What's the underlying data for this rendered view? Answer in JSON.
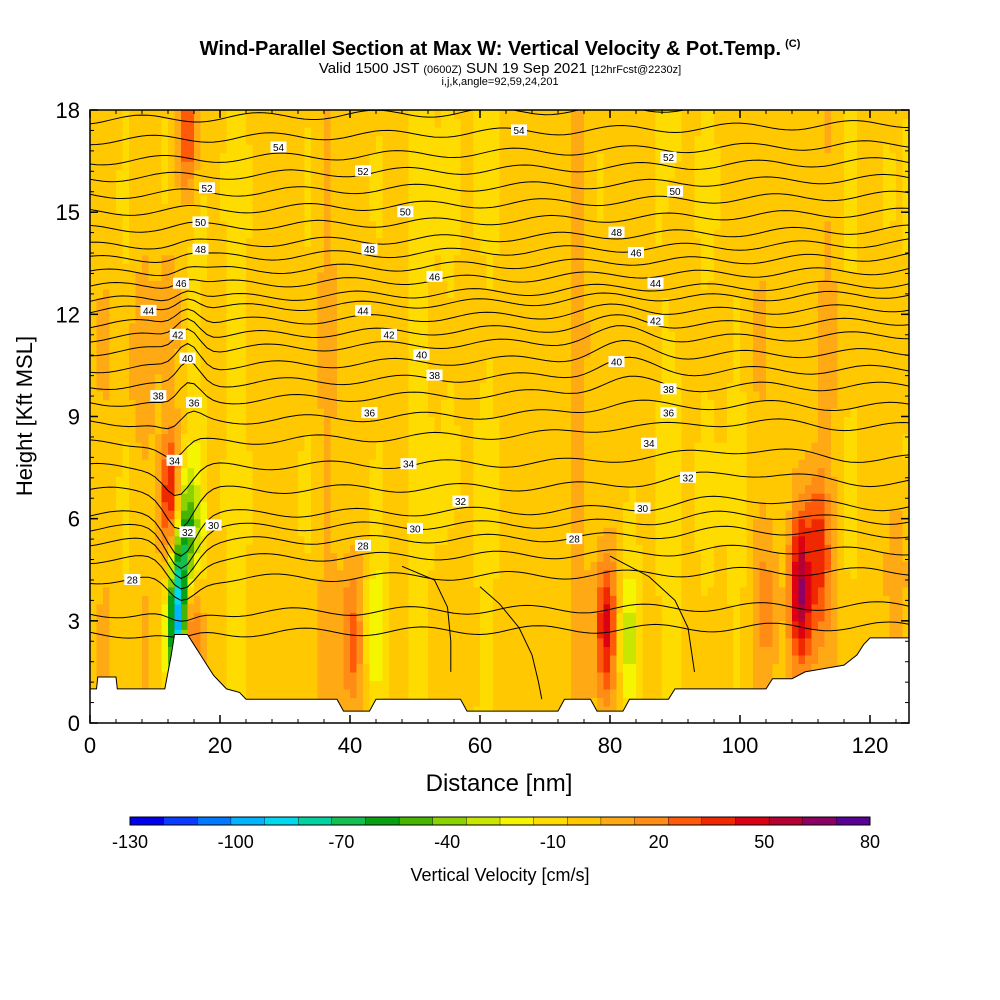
{
  "header": {
    "title": "Wind-Parallel Section at Max W: Vertical Velocity & Pot.Temp.",
    "title_mark": "(C)",
    "valid_prefix": "Valid 1500 JST",
    "valid_utc": "(0600Z)",
    "valid_date": "SUN 19 Sep 2021",
    "forecast": "[12hrFcst@2230z]",
    "indices": "i,j,k,angle=92,59,24,201"
  },
  "chart_data": {
    "type": "heatmap",
    "xlabel": "Distance [nm]",
    "ylabel": "Height [Kft MSL]",
    "xlim": [
      0,
      126
    ],
    "ylim": [
      0,
      18
    ],
    "xticks": [
      0,
      20,
      40,
      60,
      80,
      100,
      120
    ],
    "yticks": [
      0,
      3,
      6,
      9,
      12,
      15,
      18
    ],
    "colorbar": {
      "label": "Vertical Velocity [cm/s]",
      "tick_labels": [
        "-130",
        "-100",
        "-70",
        "-40",
        "-10",
        "20",
        "50",
        "80"
      ],
      "levels": [
        -130,
        -120,
        -110,
        -100,
        -90,
        -80,
        -70,
        -60,
        -50,
        -40,
        -30,
        -20,
        -10,
        0,
        10,
        20,
        30,
        40,
        50,
        60,
        70,
        80
      ],
      "colors": [
        "#0000ee",
        "#0a3cff",
        "#0078ff",
        "#00b4ff",
        "#00d8f0",
        "#00d2a0",
        "#14be50",
        "#0aa014",
        "#46b400",
        "#8cd200",
        "#c8e600",
        "#f5f500",
        "#ffdc00",
        "#ffc800",
        "#ffaa14",
        "#ff8c14",
        "#ff5a0a",
        "#f02800",
        "#dc0014",
        "#b40032",
        "#8c0064",
        "#5a0096"
      ]
    },
    "velocity_anomalies": [
      {
        "x": 12.5,
        "y": 6.5,
        "v": 60
      },
      {
        "x": 15.2,
        "y": 5.2,
        "v": -60
      },
      {
        "x": 14.0,
        "y": 3.0,
        "v": -120
      },
      {
        "x": 16.0,
        "y": 2.6,
        "v": 30
      },
      {
        "x": 15.0,
        "y": 17.5,
        "v": 40
      },
      {
        "x": 12.0,
        "y": 12.0,
        "v": 20
      },
      {
        "x": 8.0,
        "y": 10.5,
        "v": 20
      },
      {
        "x": 40.5,
        "y": 2.5,
        "v": 35
      },
      {
        "x": 44.0,
        "y": 2.8,
        "v": -20
      },
      {
        "x": 56.0,
        "y": 3.0,
        "v": 10
      },
      {
        "x": 79.5,
        "y": 2.8,
        "v": 55
      },
      {
        "x": 83.0,
        "y": 2.5,
        "v": -25
      },
      {
        "x": 109.5,
        "y": 4.0,
        "v": 75
      },
      {
        "x": 112.0,
        "y": 5.0,
        "v": 50
      },
      {
        "x": 104.0,
        "y": 3.5,
        "v": 25
      },
      {
        "x": 124.0,
        "y": 4.5,
        "v": 20
      },
      {
        "x": 90.0,
        "y": 14.0,
        "v": 10
      },
      {
        "x": 100.0,
        "y": 15.5,
        "v": 10
      },
      {
        "x": 30.0,
        "y": 15.0,
        "v": 5
      },
      {
        "x": 60.0,
        "y": 12.0,
        "v": 5
      }
    ],
    "theta_contours": [
      {
        "v": 26,
        "y0": 2.6
      },
      {
        "v": 27,
        "y0": 3.2
      },
      {
        "v": 28,
        "y0": 4.2
      },
      {
        "v": 29,
        "y0": 4.8
      },
      {
        "v": 30,
        "y0": 5.3
      },
      {
        "v": 31,
        "y0": 5.7
      },
      {
        "v": 32,
        "y0": 6.1
      },
      {
        "v": 33,
        "y0": 6.8
      },
      {
        "v": 34,
        "y0": 7.5
      },
      {
        "v": 35,
        "y0": 8.2
      },
      {
        "v": 36,
        "y0": 8.8
      },
      {
        "v": 37,
        "y0": 9.4
      },
      {
        "v": 38,
        "y0": 9.9
      },
      {
        "v": 39,
        "y0": 10.4
      },
      {
        "v": 40,
        "y0": 10.9
      },
      {
        "v": 41,
        "y0": 11.3
      },
      {
        "v": 42,
        "y0": 11.7
      },
      {
        "v": 43,
        "y0": 12.1
      },
      {
        "v": 44,
        "y0": 12.4
      },
      {
        "v": 45,
        "y0": 12.8
      },
      {
        "v": 46,
        "y0": 13.2
      },
      {
        "v": 47,
        "y0": 13.6
      },
      {
        "v": 48,
        "y0": 14.0
      },
      {
        "v": 49,
        "y0": 14.5
      },
      {
        "v": 50,
        "y0": 15.0
      },
      {
        "v": 51,
        "y0": 15.5
      },
      {
        "v": 52,
        "y0": 16.0
      },
      {
        "v": 53,
        "y0": 16.5
      },
      {
        "v": 54,
        "y0": 17.1
      },
      {
        "v": 55,
        "y0": 17.7
      }
    ],
    "contour_labels": [
      {
        "text": "54",
        "x": 29,
        "y": 16.9
      },
      {
        "text": "54",
        "x": 66,
        "y": 17.4
      },
      {
        "text": "52",
        "x": 18,
        "y": 15.7
      },
      {
        "text": "52",
        "x": 42,
        "y": 16.2
      },
      {
        "text": "52",
        "x": 89,
        "y": 16.6
      },
      {
        "text": "50",
        "x": 17,
        "y": 14.7
      },
      {
        "text": "50",
        "x": 48.5,
        "y": 15.0
      },
      {
        "text": "50",
        "x": 90,
        "y": 15.6
      },
      {
        "text": "48",
        "x": 17,
        "y": 13.9
      },
      {
        "text": "48",
        "x": 43,
        "y": 13.9
      },
      {
        "text": "48",
        "x": 81,
        "y": 14.4
      },
      {
        "text": "46",
        "x": 14,
        "y": 12.9
      },
      {
        "text": "46",
        "x": 53,
        "y": 13.1
      },
      {
        "text": "46",
        "x": 84,
        "y": 13.8
      },
      {
        "text": "44",
        "x": 9,
        "y": 12.1
      },
      {
        "text": "44",
        "x": 42,
        "y": 12.1
      },
      {
        "text": "44",
        "x": 87,
        "y": 12.9
      },
      {
        "text": "42",
        "x": 13.5,
        "y": 11.4
      },
      {
        "text": "42",
        "x": 46,
        "y": 11.4
      },
      {
        "text": "42",
        "x": 87,
        "y": 11.8
      },
      {
        "text": "40",
        "x": 15,
        "y": 10.7
      },
      {
        "text": "40",
        "x": 51,
        "y": 10.8
      },
      {
        "text": "40",
        "x": 81,
        "y": 10.6
      },
      {
        "text": "38",
        "x": 10.5,
        "y": 9.6
      },
      {
        "text": "38",
        "x": 53,
        "y": 10.2
      },
      {
        "text": "38",
        "x": 89,
        "y": 9.8
      },
      {
        "text": "36",
        "x": 16,
        "y": 9.4
      },
      {
        "text": "36",
        "x": 43,
        "y": 9.1
      },
      {
        "text": "36",
        "x": 89,
        "y": 9.1
      },
      {
        "text": "34",
        "x": 13,
        "y": 7.7
      },
      {
        "text": "34",
        "x": 49,
        "y": 7.6
      },
      {
        "text": "34",
        "x": 86,
        "y": 8.2
      },
      {
        "text": "32",
        "x": 15,
        "y": 5.6
      },
      {
        "text": "32",
        "x": 57,
        "y": 6.5
      },
      {
        "text": "32",
        "x": 92,
        "y": 7.2
      },
      {
        "text": "30",
        "x": 19,
        "y": 5.8
      },
      {
        "text": "30",
        "x": 50,
        "y": 5.7
      },
      {
        "text": "30",
        "x": 85,
        "y": 6.3
      },
      {
        "text": "28",
        "x": 6.5,
        "y": 4.2
      },
      {
        "text": "28",
        "x": 42,
        "y": 5.2
      },
      {
        "text": "28",
        "x": 74.5,
        "y": 5.4
      }
    ],
    "terrain": [
      [
        0,
        1.0
      ],
      [
        1,
        1.0
      ],
      [
        1.2,
        1.35
      ],
      [
        4,
        1.35
      ],
      [
        4.2,
        1.0
      ],
      [
        11.5,
        1.0
      ],
      [
        12.5,
        2.0
      ],
      [
        13,
        2.6
      ],
      [
        15,
        2.6
      ],
      [
        16,
        2.3
      ],
      [
        17,
        2.0
      ],
      [
        18,
        1.7
      ],
      [
        19,
        1.4
      ],
      [
        20,
        1.2
      ],
      [
        21,
        1.0
      ],
      [
        23,
        0.9
      ],
      [
        24,
        0.7
      ],
      [
        38,
        0.7
      ],
      [
        39,
        0.35
      ],
      [
        43,
        0.35
      ],
      [
        44,
        0.7
      ],
      [
        57,
        0.7
      ],
      [
        58,
        0.35
      ],
      [
        72,
        0.35
      ],
      [
        73,
        0.7
      ],
      [
        77,
        0.7
      ],
      [
        78,
        0.35
      ],
      [
        82,
        0.35
      ],
      [
        83,
        0.7
      ],
      [
        89,
        0.7
      ],
      [
        90,
        1.0
      ],
      [
        104,
        1.0
      ],
      [
        105,
        1.3
      ],
      [
        108,
        1.3
      ],
      [
        110,
        1.5
      ],
      [
        116,
        1.7
      ],
      [
        118,
        2.0
      ],
      [
        119,
        2.3
      ],
      [
        120,
        2.5
      ],
      [
        126,
        2.5
      ]
    ],
    "extra_contours": [
      {
        "pts": [
          [
            60,
            4.0
          ],
          [
            63,
            3.5
          ],
          [
            66,
            2.8
          ],
          [
            68,
            2.0
          ],
          [
            69,
            1.2
          ],
          [
            69.5,
            0.7
          ]
        ]
      },
      {
        "pts": [
          [
            48,
            4.6
          ],
          [
            53,
            4.2
          ],
          [
            55,
            3.4
          ],
          [
            55.5,
            2.4
          ],
          [
            55.5,
            1.5
          ]
        ]
      },
      {
        "pts": [
          [
            80,
            4.9
          ],
          [
            86,
            4.3
          ],
          [
            90,
            3.6
          ],
          [
            92,
            2.8
          ],
          [
            93,
            1.5
          ]
        ]
      }
    ]
  }
}
